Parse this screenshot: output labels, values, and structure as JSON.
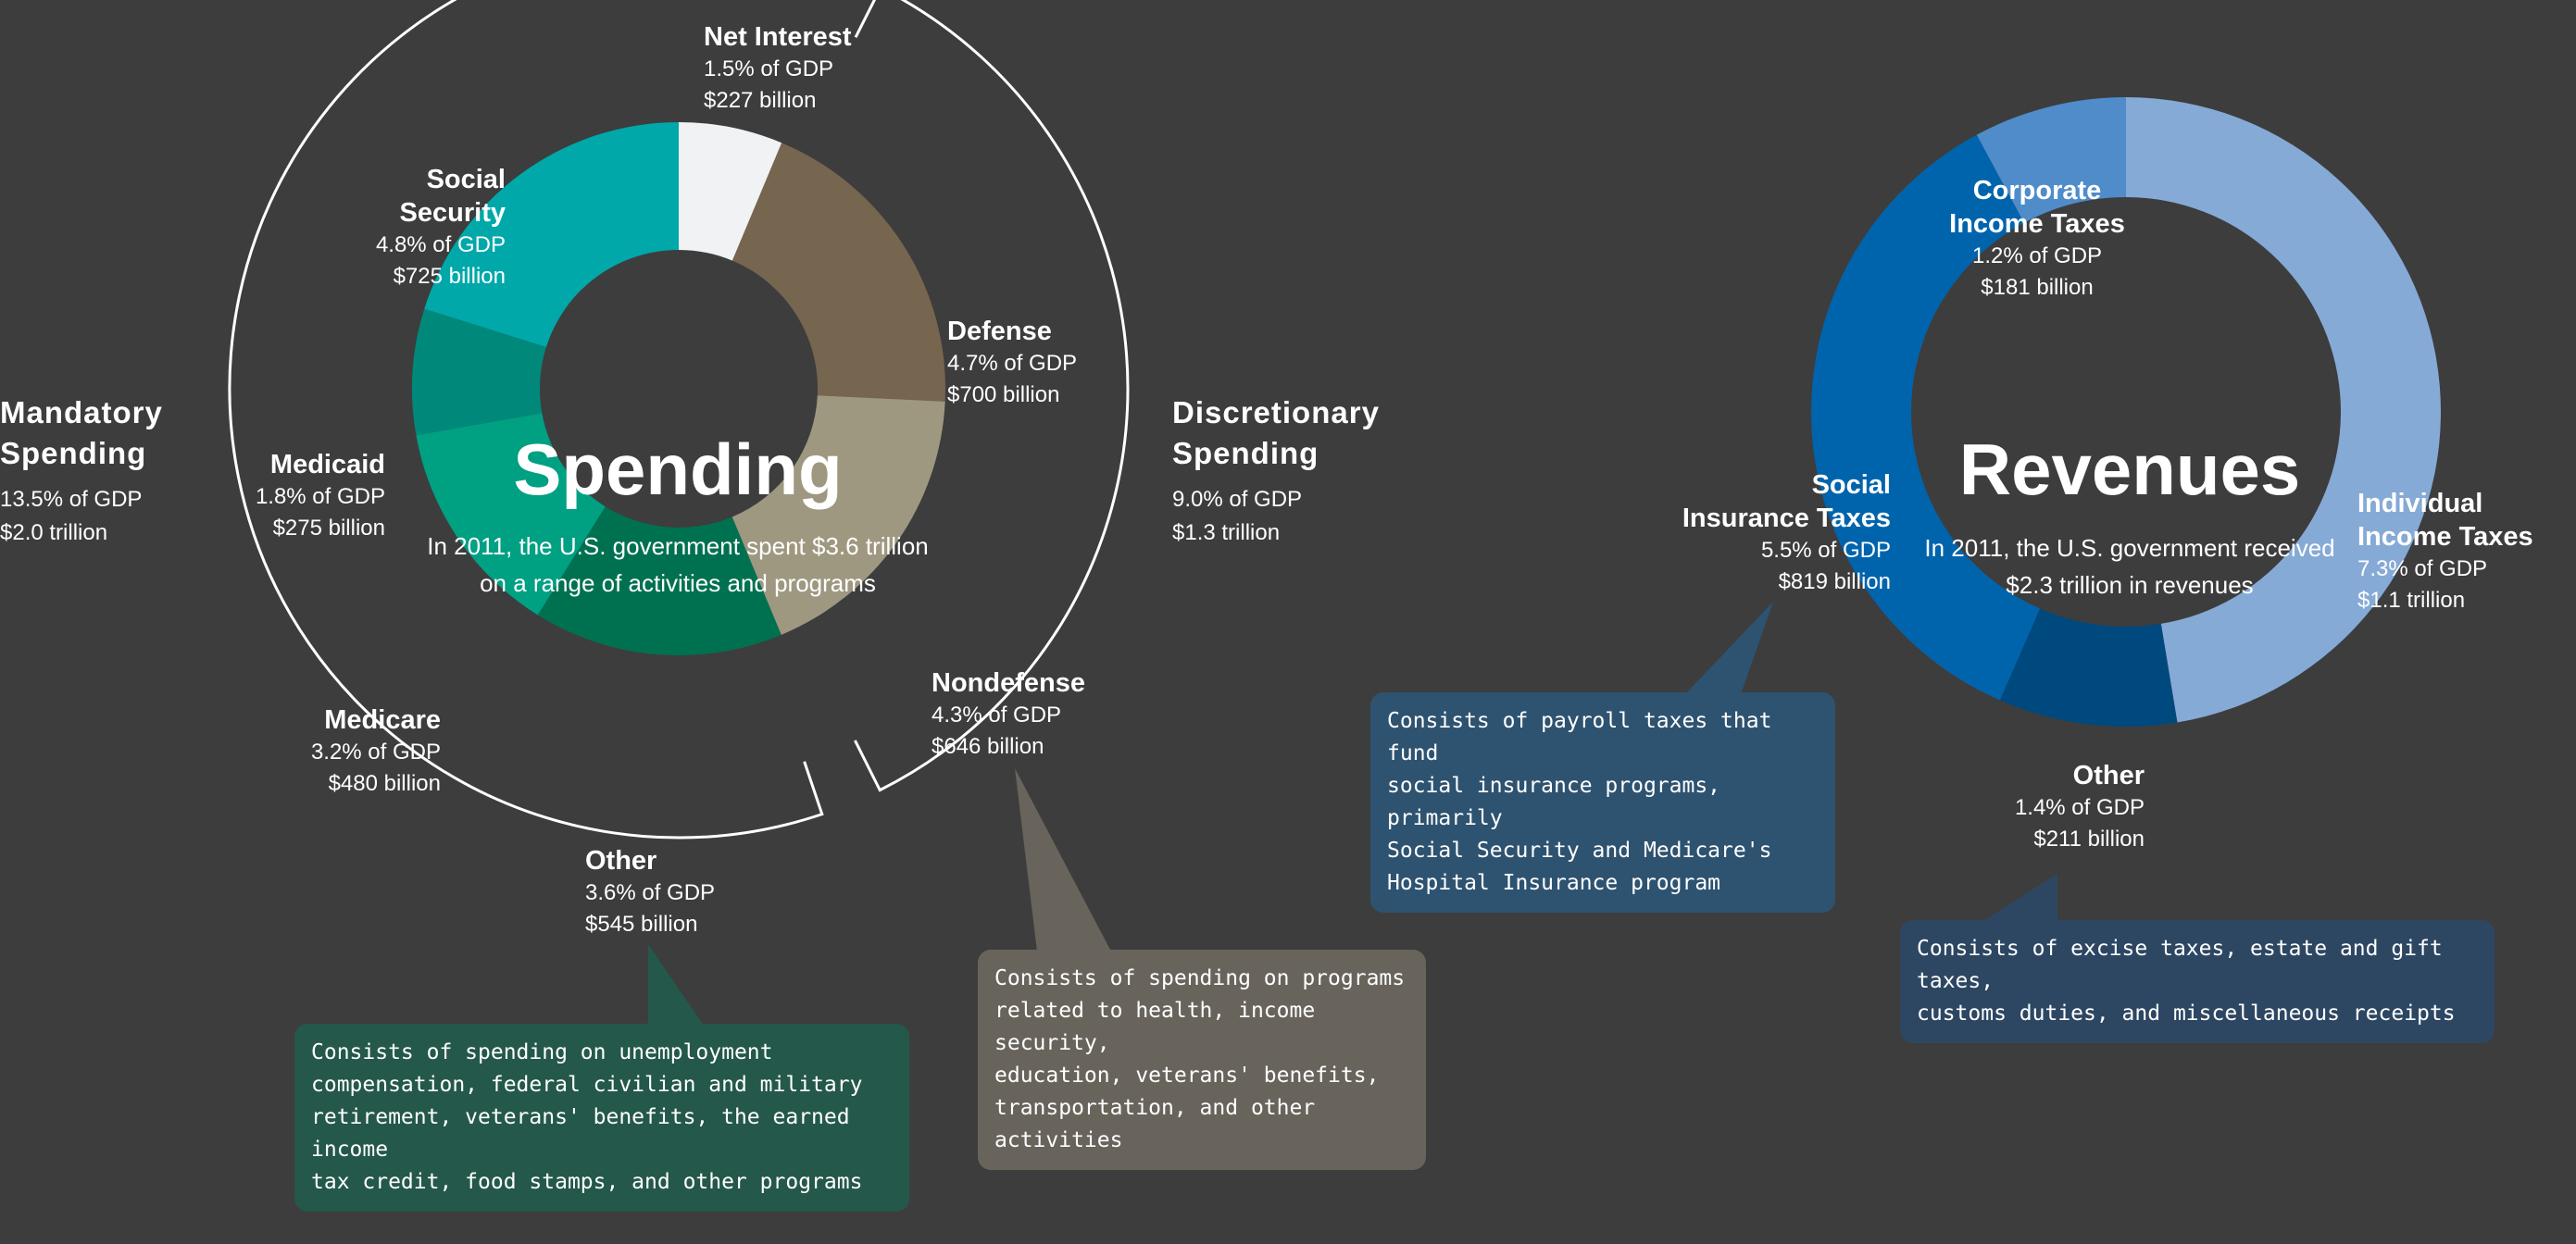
{
  "colors": {
    "background": "#3d3d3d",
    "net_interest": "#f1f2f4",
    "defense": "#76654f",
    "nondefense": "#9f9880",
    "other_spending": "#007150",
    "medicare": "#00a083",
    "medicaid": "#00897b",
    "social_security": "#00a8aa",
    "individual_income": "#86aad6",
    "corporate_income": "#4f8cc9",
    "social_insurance": "#0064ad",
    "other_revenue": "#00497e",
    "callout_green": "#24584a",
    "callout_tan": "#68645c",
    "callout_blue": "#2e5370",
    "callout_navy": "#2d4763"
  },
  "chart_data": [
    {
      "type": "pie",
      "title": "Spending",
      "subtitle": "In 2011, the U.S. government spent $3.6 trillion\non a range of activities and programs",
      "slices": [
        {
          "name": "Net Interest",
          "pct_gdp": "1.5% of GDP",
          "amount": "$227 billion",
          "value": 227,
          "color": "#f1f2f4"
        },
        {
          "name": "Defense",
          "pct_gdp": "4.7% of GDP",
          "amount": "$700 billion",
          "value": 700,
          "color": "#76654f"
        },
        {
          "name": "Nondefense",
          "pct_gdp": "4.3% of GDP",
          "amount": "$646 billion",
          "value": 646,
          "color": "#9f9880"
        },
        {
          "name": "Other",
          "pct_gdp": "3.6% of GDP",
          "amount": "$545 billion",
          "value": 545,
          "color": "#007150"
        },
        {
          "name": "Medicare",
          "pct_gdp": "3.2% of GDP",
          "amount": "$480 billion",
          "value": 480,
          "color": "#00a083"
        },
        {
          "name": "Medicaid",
          "pct_gdp": "1.8% of GDP",
          "amount": "$275 billion",
          "value": 275,
          "color": "#00897b"
        },
        {
          "name": "Social\nSecurity",
          "pct_gdp": "4.8% of GDP",
          "amount": "$725 billion",
          "value": 725,
          "color": "#00a8aa"
        }
      ],
      "groups": [
        {
          "name": "Mandatory\nSpending",
          "pct_gdp": "13.5% of GDP",
          "amount": "$2.0 trillion"
        },
        {
          "name": "Discretionary\nSpending",
          "pct_gdp": "9.0% of GDP",
          "amount": "$1.3 trillion"
        }
      ]
    },
    {
      "type": "pie",
      "title": "Revenues",
      "subtitle": "In 2011, the U.S. government received\n$2.3 trillion in revenues",
      "slices": [
        {
          "name": "Individual\nIncome Taxes",
          "pct_gdp": "7.3% of GDP",
          "amount": "$1.1 trillion",
          "value": 1091,
          "color": "#86aad6"
        },
        {
          "name": "Other",
          "pct_gdp": "1.4% of GDP",
          "amount": "$211 billion",
          "value": 211,
          "color": "#00497e"
        },
        {
          "name": "Social\nInsurance Taxes",
          "pct_gdp": "5.5% of GDP",
          "amount": "$819 billion",
          "value": 819,
          "color": "#0064ad"
        },
        {
          "name": "Corporate\nIncome Taxes",
          "pct_gdp": "1.2% of GDP",
          "amount": "$181 billion",
          "value": 181,
          "color": "#4f8cc9"
        }
      ]
    }
  ],
  "callouts": {
    "spending_other": "Consists of spending on unemployment\ncompensation, federal civilian and military\nretirement, veterans' benefits, the earned income\ntax credit, food stamps, and other programs",
    "nondefense": "Consists of spending on programs\nrelated to health, income security,\neducation, veterans' benefits,\ntransportation, and other activities",
    "social_insurance": "Consists of payroll taxes that fund\nsocial insurance programs, primarily\nSocial Security and Medicare's\nHospital Insurance program",
    "revenue_other": "Consists of excise taxes, estate and gift taxes,\ncustoms duties, and miscellaneous receipts"
  }
}
